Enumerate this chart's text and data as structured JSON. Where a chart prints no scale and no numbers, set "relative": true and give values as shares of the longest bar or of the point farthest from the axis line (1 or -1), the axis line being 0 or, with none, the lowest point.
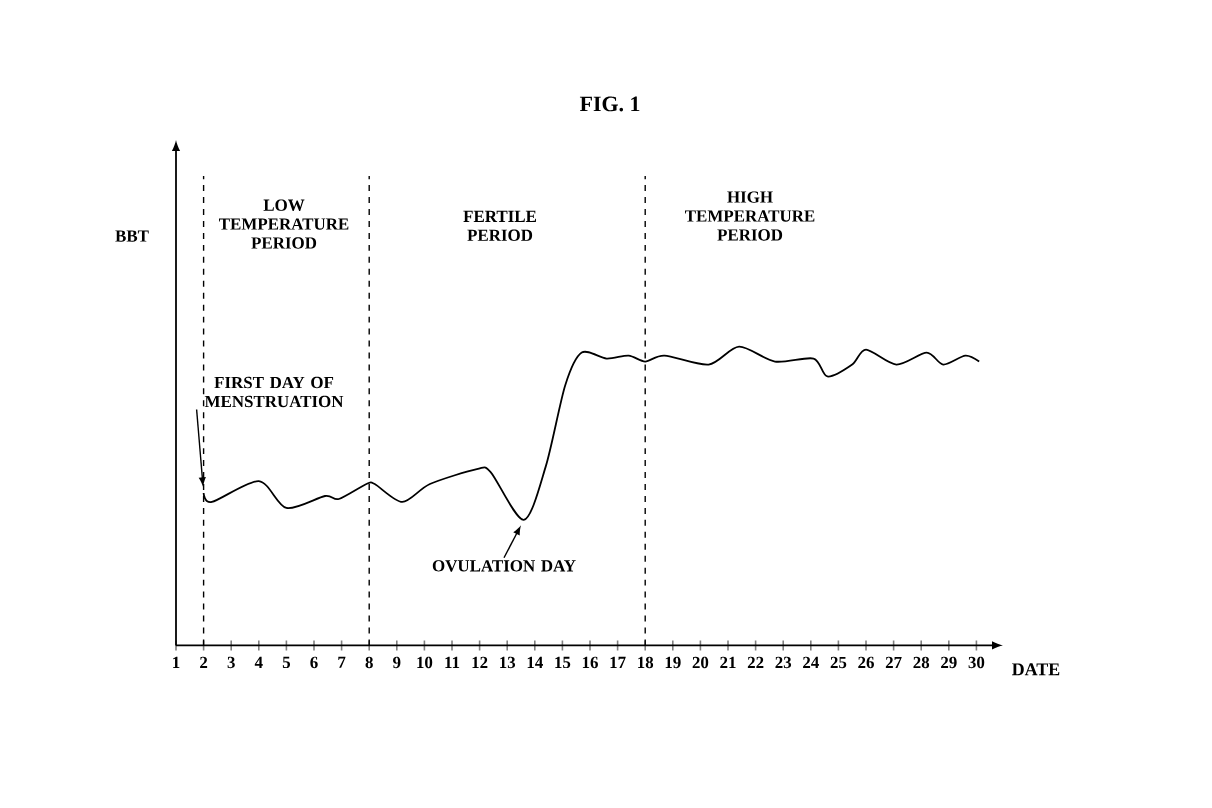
{
  "chart_data": {
    "type": "line",
    "title": "FIG. 1",
    "xlabel": "DATE",
    "relative": true,
    "x": [
      2,
      2.3,
      4.0,
      5.0,
      6.4,
      6.9,
      7.9,
      8.2,
      9.2,
      10.2,
      11.9,
      12.4,
      13.6,
      14.4,
      15.1,
      15.7,
      16.6,
      17.4,
      18,
      18.7,
      20.3,
      21.4,
      22.7,
      24.1,
      24.6,
      25.5,
      26,
      27.1,
      28.2,
      28.8,
      29.6,
      30.1
    ],
    "values": [
      0.51,
      0.48,
      0.55,
      0.46,
      0.5,
      0.49,
      0.54,
      0.54,
      0.48,
      0.54,
      0.59,
      0.58,
      0.42,
      0.6,
      0.87,
      0.98,
      0.96,
      0.97,
      0.95,
      0.97,
      0.94,
      1,
      0.95,
      0.96,
      0.9,
      0.94,
      0.99,
      0.94,
      0.98,
      0.94,
      0.97,
      0.95
    ],
    "color": "#000000",
    "marker": "none",
    "line_style": "solid",
    "grid": false,
    "xlim": [
      1,
      30.6
    ],
    "xticks": [
      1,
      2,
      3,
      4,
      5,
      6,
      7,
      8,
      9,
      10,
      11,
      12,
      13,
      14,
      15,
      16,
      17,
      18,
      19,
      20,
      21,
      22,
      23,
      24,
      25,
      26,
      27,
      28,
      29,
      30
    ],
    "ref_lines": [
      {
        "axis": "x",
        "value": 2,
        "line_style": "dashed"
      },
      {
        "axis": "x",
        "value": 8,
        "line_style": "dashed"
      },
      {
        "axis": "x",
        "value": 18,
        "line_style": "dashed"
      }
    ],
    "annotations": [
      "BBT",
      "LOW TEMPERATURE PERIOD",
      "FERTILE PERIOD",
      "HIGH TEMPERATURE PERIOD",
      {
        "text": "FIRST DAY OF MENSTRUATION",
        "x": 2,
        "y": 0.51
      },
      {
        "text": "OVULATION DAY",
        "x": 13.6,
        "y": 0.42
      }
    ]
  }
}
